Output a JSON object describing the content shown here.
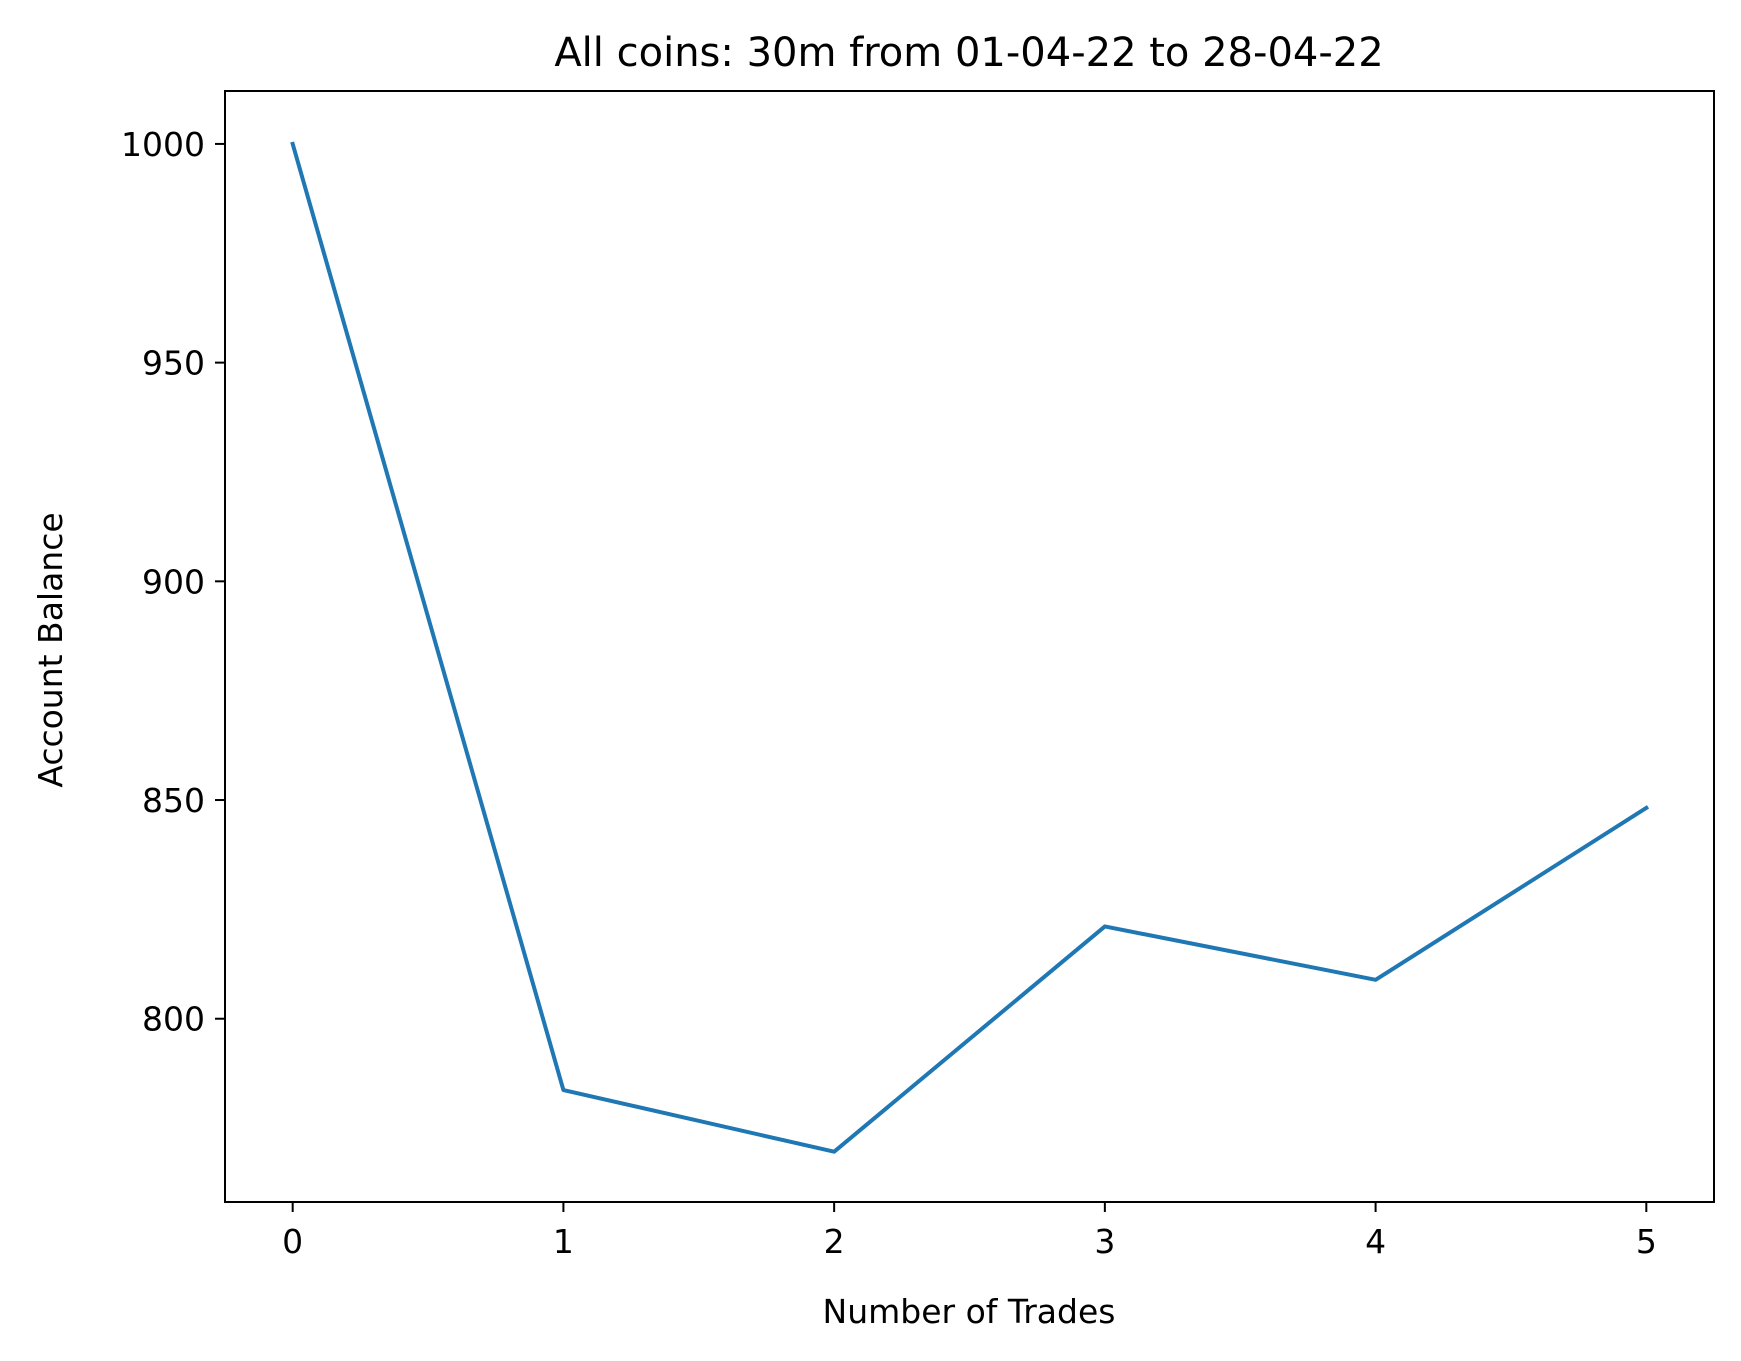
{
  "chart_data": {
    "type": "line",
    "title": "All coins: 30m from 01-04-22 to 28-04-22",
    "xlabel": "Number of Trades",
    "ylabel": "Account Balance",
    "x": [
      0,
      1,
      2,
      3,
      4,
      5
    ],
    "series": [
      {
        "values": [
          1000.0,
          783.7,
          769.6,
          821.1,
          808.9,
          848.2
        ]
      }
    ],
    "xlim": [
      -0.25,
      5.25
    ],
    "ylim": [
      758.1,
      1012.1
    ],
    "xticks": [
      "0",
      "1",
      "2",
      "3",
      "4",
      "5"
    ],
    "yticks": [
      "800",
      "850",
      "900",
      "950",
      "1000"
    ],
    "grid": false,
    "colors": {
      "series": "#1f77b4",
      "axes": "#000000",
      "background": "#ffffff"
    }
  }
}
